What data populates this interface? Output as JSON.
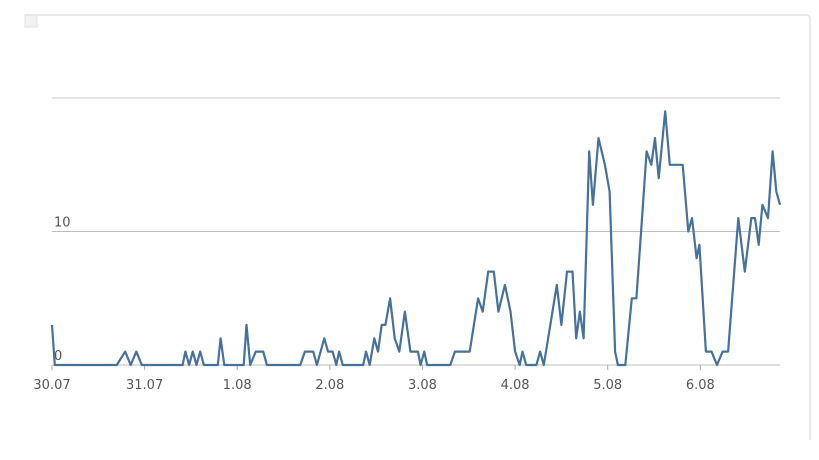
{
  "chart_data": {
    "type": "line",
    "color": "#46719a",
    "grid": true,
    "x": [
      0,
      0.03,
      0.7,
      0.79,
      0.85,
      0.91,
      0.97,
      1.41,
      1.44,
      1.48,
      1.52,
      1.56,
      1.6,
      1.64,
      1.79,
      1.82,
      1.86,
      2.07,
      2.1,
      2.14,
      2.2,
      2.28,
      2.32,
      2.68,
      2.73,
      2.82,
      2.86,
      2.94,
      2.98,
      3.03,
      3.07,
      3.1,
      3.14,
      3.36,
      3.39,
      3.43,
      3.48,
      3.52,
      3.56,
      3.6,
      3.65,
      3.7,
      3.75,
      3.81,
      3.87,
      3.95,
      3.98,
      4.02,
      4.05,
      4.3,
      4.35,
      4.51,
      4.6,
      4.65,
      4.71,
      4.77,
      4.82,
      4.89,
      4.95,
      5.0,
      5.05,
      5.08,
      5.12,
      5.23,
      5.27,
      5.31,
      5.45,
      5.5,
      5.56,
      5.62,
      5.66,
      5.7,
      5.74,
      5.8,
      5.84,
      5.9,
      5.97,
      6.02,
      6.08,
      6.11,
      6.19,
      6.26,
      6.31,
      6.36,
      6.42,
      6.47,
      6.51,
      6.55,
      6.62,
      6.67,
      6.81,
      6.87,
      6.91,
      6.96,
      6.99,
      7.06,
      7.12,
      7.18,
      7.24,
      7.3,
      7.41,
      7.48,
      7.55,
      7.59,
      7.63,
      7.67,
      7.73,
      7.78,
      7.82,
      7.86
    ],
    "values": [
      3,
      0,
      0,
      1,
      0,
      1,
      0,
      0,
      1,
      0,
      1,
      0,
      1,
      0,
      0,
      2,
      0,
      0,
      3,
      0,
      1,
      1,
      0,
      0,
      1,
      1,
      0,
      2,
      1,
      1,
      0,
      1,
      0,
      0,
      1,
      0,
      2,
      1,
      3,
      3,
      5,
      2,
      1,
      4,
      1,
      1,
      0,
      1,
      0,
      0,
      1,
      1,
      5,
      4,
      7,
      7,
      4,
      6,
      4,
      1,
      0,
      1,
      0,
      0,
      1,
      0,
      6,
      3,
      7,
      7,
      2,
      4,
      2,
      16,
      12,
      17,
      15,
      13,
      1,
      0,
      0,
      5,
      5,
      10,
      16,
      15,
      17,
      14,
      19,
      15,
      15,
      10,
      11,
      8,
      9,
      1,
      1,
      0,
      1,
      1,
      11,
      7,
      11,
      11,
      9,
      12,
      11,
      16,
      13,
      12
    ],
    "xlim": [
      0,
      7.86
    ],
    "ylim": [
      0,
      20
    ],
    "xticks": [
      {
        "value": 0,
        "label": "30.07"
      },
      {
        "value": 1,
        "label": "31.07"
      },
      {
        "value": 2,
        "label": "1.08"
      },
      {
        "value": 3,
        "label": "2.08"
      },
      {
        "value": 4,
        "label": "3.08"
      },
      {
        "value": 5,
        "label": "4.08"
      },
      {
        "value": 6,
        "label": "5.08"
      },
      {
        "value": 7,
        "label": "6.08"
      }
    ],
    "yticks": [
      0,
      10
    ]
  }
}
